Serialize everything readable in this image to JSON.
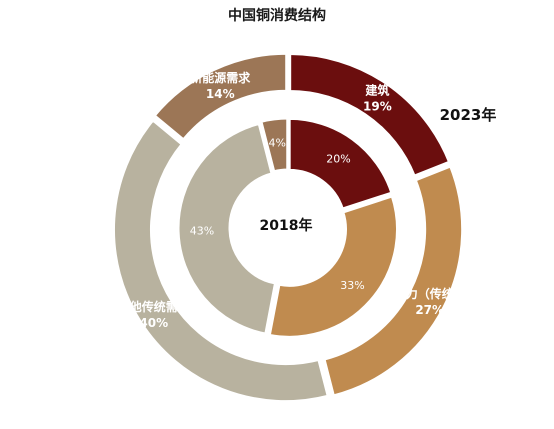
{
  "chart_data": {
    "type": "pie",
    "subtype": "double-donut",
    "title": "中国铜消费结构",
    "categories": [
      "建筑",
      "电力（传统）",
      "其他传统需求",
      "新能源需求"
    ],
    "colors": [
      "#6b0e0e",
      "#c08b4f",
      "#b8b29f",
      "#9c7656"
    ],
    "outer_ring": {
      "label": "2023年",
      "values": [
        19,
        27,
        40,
        14
      ],
      "value_labels": [
        "19%",
        "27%",
        "40%",
        "14%"
      ]
    },
    "inner_ring": {
      "label": "2018年",
      "values": [
        20,
        33,
        43,
        4
      ],
      "value_labels": [
        "20%",
        "33%",
        "43%",
        "4%"
      ]
    }
  }
}
